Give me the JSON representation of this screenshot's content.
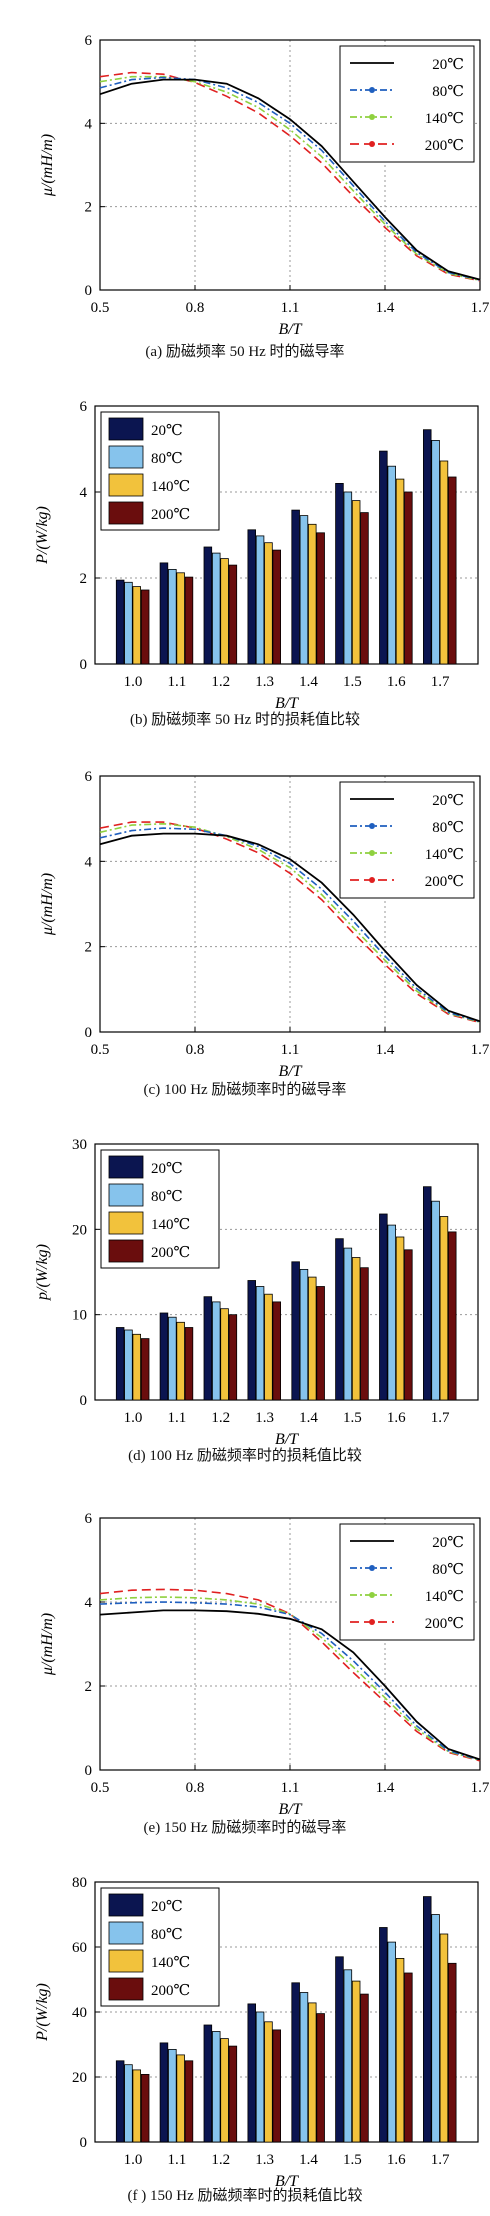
{
  "colors": {
    "c20": "#000000",
    "c80": "#1f5fbf",
    "c140": "#8fd13f",
    "c200": "#e02020",
    "b20": "#0b1550",
    "b80": "#86c3ec",
    "b140": "#f2c23c",
    "b200": "#6a0d0d"
  },
  "chart_data": [
    {
      "type": "line",
      "caption": "(a) 励磁频率 50 Hz 时的磁导率",
      "xlabel": "B/T",
      "ylabel": "μ/(mH/m)",
      "xlim": [
        0.5,
        1.7
      ],
      "ylim": [
        0,
        6
      ],
      "xticks": [
        "0.5",
        "0.8",
        "1.1",
        "1.4",
        "1.7"
      ],
      "yticks": [
        "0",
        "2",
        "4",
        "6"
      ],
      "grid": true,
      "legend_position": "top-right",
      "x": [
        0.5,
        0.6,
        0.7,
        0.8,
        0.9,
        1.0,
        1.1,
        1.2,
        1.3,
        1.4,
        1.5,
        1.6,
        1.7
      ],
      "series": [
        {
          "name": "20℃",
          "style": "solid",
          "values": [
            4.7,
            4.95,
            5.05,
            5.05,
            4.95,
            4.6,
            4.1,
            3.45,
            2.6,
            1.75,
            0.95,
            0.45,
            0.25
          ]
        },
        {
          "name": "80℃",
          "style": "dashdot",
          "values": [
            4.85,
            5.05,
            5.1,
            5.05,
            4.85,
            4.5,
            4.0,
            3.35,
            2.5,
            1.65,
            0.9,
            0.42,
            0.24
          ]
        },
        {
          "name": "140℃",
          "style": "dashdot",
          "values": [
            5.0,
            5.12,
            5.12,
            5.0,
            4.75,
            4.38,
            3.85,
            3.2,
            2.38,
            1.58,
            0.86,
            0.4,
            0.23
          ]
        },
        {
          "name": "200℃",
          "style": "dashed",
          "values": [
            5.12,
            5.22,
            5.18,
            4.98,
            4.65,
            4.25,
            3.7,
            3.05,
            2.25,
            1.5,
            0.82,
            0.38,
            0.22
          ]
        }
      ]
    },
    {
      "type": "bar",
      "caption": "(b) 励磁频率 50 Hz 时的损耗值比较",
      "xlabel": "B/T",
      "ylabel": "P/(W/kg)",
      "ylim": [
        0,
        6
      ],
      "yticks": [
        "0",
        "2",
        "4",
        "6"
      ],
      "categories": [
        "1.0",
        "1.1",
        "1.2",
        "1.3",
        "1.4",
        "1.5",
        "1.6",
        "1.7"
      ],
      "grid": true,
      "legend_position": "top-left",
      "series": [
        {
          "name": "20℃",
          "values": [
            1.95,
            2.35,
            2.72,
            3.12,
            3.58,
            4.2,
            4.95,
            5.45
          ]
        },
        {
          "name": "80℃",
          "values": [
            1.9,
            2.2,
            2.58,
            2.98,
            3.45,
            4.0,
            4.6,
            5.2
          ]
        },
        {
          "name": "140℃",
          "values": [
            1.8,
            2.12,
            2.45,
            2.82,
            3.25,
            3.8,
            4.3,
            4.72
          ]
        },
        {
          "name": "200℃",
          "values": [
            1.72,
            2.02,
            2.3,
            2.65,
            3.05,
            3.52,
            4.0,
            4.35
          ]
        }
      ]
    },
    {
      "type": "line",
      "caption": "(c) 100 Hz 励磁频率时的磁导率",
      "xlabel": "B/T",
      "ylabel": "μ/(mH/m)",
      "xlim": [
        0.5,
        1.7
      ],
      "ylim": [
        0,
        6
      ],
      "xticks": [
        "0.5",
        "0.8",
        "1.1",
        "1.4",
        "1.7"
      ],
      "yticks": [
        "0",
        "2",
        "4",
        "6"
      ],
      "grid": true,
      "legend_position": "top-right",
      "x": [
        0.5,
        0.6,
        0.7,
        0.8,
        0.9,
        1.0,
        1.1,
        1.2,
        1.3,
        1.4,
        1.5,
        1.6,
        1.7
      ],
      "series": [
        {
          "name": "20℃",
          "style": "solid",
          "values": [
            4.4,
            4.6,
            4.65,
            4.65,
            4.6,
            4.4,
            4.05,
            3.5,
            2.75,
            1.9,
            1.1,
            0.5,
            0.25
          ]
        },
        {
          "name": "80℃",
          "style": "dashdot",
          "values": [
            4.55,
            4.72,
            4.78,
            4.75,
            4.6,
            4.35,
            3.95,
            3.35,
            2.6,
            1.78,
            1.02,
            0.46,
            0.24
          ]
        },
        {
          "name": "140℃",
          "style": "dashdot",
          "values": [
            4.68,
            4.85,
            4.88,
            4.8,
            4.58,
            4.28,
            3.85,
            3.22,
            2.45,
            1.68,
            0.96,
            0.44,
            0.23
          ]
        },
        {
          "name": "200℃",
          "style": "dashed",
          "values": [
            4.78,
            4.92,
            4.92,
            4.78,
            4.52,
            4.2,
            3.72,
            3.1,
            2.32,
            1.58,
            0.9,
            0.42,
            0.22
          ]
        }
      ]
    },
    {
      "type": "bar",
      "caption": "(d) 100 Hz 励磁频率时的损耗值比较",
      "xlabel": "B/T",
      "ylabel": "p/(W/kg)",
      "ylim": [
        0,
        30
      ],
      "yticks": [
        "0",
        "10",
        "20",
        "30"
      ],
      "categories": [
        "1.0",
        "1.1",
        "1.2",
        "1.3",
        "1.4",
        "1.5",
        "1.6",
        "1.7"
      ],
      "grid": true,
      "legend_position": "top-left",
      "series": [
        {
          "name": "20℃",
          "values": [
            8.5,
            10.2,
            12.1,
            14.0,
            16.2,
            18.9,
            21.8,
            25.0
          ]
        },
        {
          "name": "80℃",
          "values": [
            8.2,
            9.7,
            11.5,
            13.3,
            15.3,
            17.8,
            20.5,
            23.3
          ]
        },
        {
          "name": "140℃",
          "values": [
            7.7,
            9.1,
            10.7,
            12.4,
            14.4,
            16.7,
            19.1,
            21.5
          ]
        },
        {
          "name": "200℃",
          "values": [
            7.2,
            8.5,
            10.0,
            11.5,
            13.3,
            15.5,
            17.6,
            19.7
          ]
        }
      ]
    },
    {
      "type": "line",
      "caption": "(e) 150 Hz 励磁频率时的磁导率",
      "xlabel": "B/T",
      "ylabel": "μ/(mH/m)",
      "xlim": [
        0.5,
        1.7
      ],
      "ylim": [
        0,
        6
      ],
      "xticks": [
        "0.5",
        "0.8",
        "1.1",
        "1.4",
        "1.7"
      ],
      "yticks": [
        "0",
        "2",
        "4",
        "6"
      ],
      "grid": true,
      "legend_position": "top-right",
      "x": [
        0.5,
        0.6,
        0.7,
        0.8,
        0.9,
        1.0,
        1.1,
        1.2,
        1.3,
        1.4,
        1.5,
        1.6,
        1.7
      ],
      "series": [
        {
          "name": "20℃",
          "style": "solid",
          "values": [
            3.7,
            3.75,
            3.8,
            3.8,
            3.78,
            3.72,
            3.6,
            3.35,
            2.8,
            2.0,
            1.15,
            0.5,
            0.25
          ]
        },
        {
          "name": "80℃",
          "style": "dashdot",
          "values": [
            3.95,
            3.98,
            4.0,
            3.98,
            3.95,
            3.88,
            3.7,
            3.25,
            2.6,
            1.85,
            1.05,
            0.46,
            0.24
          ]
        },
        {
          "name": "140℃",
          "style": "dashdot",
          "values": [
            4.05,
            4.1,
            4.12,
            4.1,
            4.05,
            3.95,
            3.72,
            3.15,
            2.45,
            1.72,
            0.98,
            0.44,
            0.23
          ]
        },
        {
          "name": "200℃",
          "style": "dashed",
          "values": [
            4.2,
            4.28,
            4.3,
            4.28,
            4.2,
            4.05,
            3.72,
            3.05,
            2.32,
            1.62,
            0.92,
            0.42,
            0.22
          ]
        }
      ]
    },
    {
      "type": "bar",
      "caption": "(f ) 150 Hz 励磁频率时的损耗值比较",
      "xlabel": "B/T",
      "ylabel": "P/(W/kg)",
      "ylim": [
        0,
        80
      ],
      "yticks": [
        "0",
        "20",
        "40",
        "60",
        "80"
      ],
      "categories": [
        "1.0",
        "1.1",
        "1.2",
        "1.3",
        "1.4",
        "1.5",
        "1.6",
        "1.7"
      ],
      "grid": true,
      "legend_position": "top-left",
      "series": [
        {
          "name": "20℃",
          "values": [
            25.0,
            30.5,
            36.0,
            42.5,
            49.0,
            57.0,
            66.0,
            75.5
          ]
        },
        {
          "name": "80℃",
          "values": [
            23.8,
            28.5,
            34.0,
            40.0,
            46.0,
            53.0,
            61.5,
            70.0
          ]
        },
        {
          "name": "140℃",
          "values": [
            22.2,
            26.8,
            31.8,
            37.0,
            42.8,
            49.5,
            56.5,
            64.0
          ]
        },
        {
          "name": "200℃",
          "values": [
            20.8,
            25.0,
            29.5,
            34.5,
            39.5,
            45.5,
            52.0,
            55.0
          ]
        }
      ]
    }
  ]
}
